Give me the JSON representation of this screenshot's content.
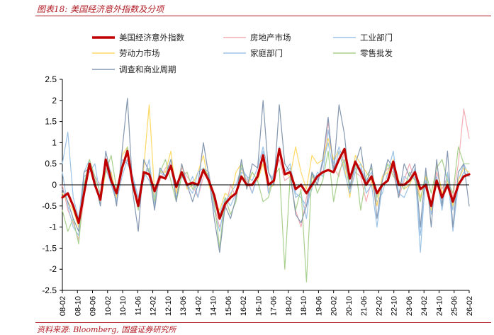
{
  "header": {
    "title": "图表18:  美国经济意外指数及分项"
  },
  "footer": {
    "source": "资料来源:  Bloomberg, 国盛证券研究所"
  },
  "chart_data": {
    "type": "line",
    "title": "美国经济意外指数及分项",
    "xlabel": "",
    "ylabel": "",
    "ylim": [
      -2.5,
      2.5
    ],
    "yticks": [
      "2.5",
      "2",
      "1.5",
      "1",
      "0.5",
      "0",
      "-0.5",
      "-1",
      "-1.5",
      "-2",
      "-2.5"
    ],
    "xticks": [
      "08-02",
      "08-10",
      "09-06",
      "10-02",
      "10-10",
      "11-06",
      "12-02",
      "12-10",
      "13-06",
      "14-02",
      "14-10",
      "15-06",
      "16-02",
      "16-10",
      "17-06",
      "18-02",
      "18-10",
      "19-06",
      "20-02",
      "20-10",
      "21-06",
      "22-02",
      "22-10",
      "23-06",
      "24-02",
      "24-10",
      "25-06",
      "26-02"
    ],
    "legend_position": "top",
    "series": [
      {
        "name": "美国经济意外指数",
        "color": "#c00000",
        "width": 3.2,
        "values": [
          -0.3,
          -0.2,
          -0.5,
          -0.9,
          -0.2,
          0.5,
          0.0,
          -0.35,
          0.6,
          0.1,
          -0.2,
          0.4,
          0.8,
          0.0,
          -0.5,
          0.3,
          0.25,
          -0.15,
          0.2,
          0.15,
          0.45,
          -0.05,
          0.3,
          0.0,
          0.05,
          0.0,
          0.35,
          0.1,
          -0.25,
          -0.8,
          -0.45,
          -0.3,
          -0.2,
          0.2,
          0.0,
          0.0,
          0.2,
          0.7,
          0.0,
          0.1,
          0.85,
          0.25,
          0.3,
          -0.1,
          0.0,
          -0.2,
          0.0,
          0.2,
          0.3,
          0.35,
          0.3,
          0.6,
          0.85,
          0.15,
          0.55,
          0.3,
          0.0,
          0.2,
          -0.2,
          0.0,
          0.1,
          0.55,
          0.0,
          0.0,
          0.1,
          0.3,
          -0.1,
          0.0,
          -0.5,
          0.1,
          -0.3,
          0.0,
          -0.4,
          0.0,
          0.2,
          0.25
        ]
      },
      {
        "name": "房地产市场",
        "color": "#f4aeb5",
        "width": 1.2,
        "values": [
          0.0,
          -0.6,
          -0.9,
          -1.3,
          -0.3,
          0.5,
          0.2,
          0.0,
          0.4,
          0.2,
          -0.3,
          0.5,
          0.6,
          0.1,
          -0.4,
          0.2,
          0.3,
          -0.3,
          0.1,
          0.4,
          0.5,
          -0.2,
          0.4,
          0.2,
          0.0,
          -0.3,
          0.2,
          0.3,
          -0.5,
          -1.0,
          -0.6,
          0.0,
          -0.3,
          0.4,
          0.1,
          -0.2,
          0.3,
          0.6,
          -0.2,
          0.3,
          0.6,
          0.1,
          0.2,
          -0.6,
          -1.0,
          -0.3,
          0.2,
          0.0,
          0.5,
          1.5,
          0.4,
          0.2,
          0.8,
          -0.1,
          0.3,
          0.2,
          -0.4,
          0.1,
          -0.5,
          0.2,
          0.4,
          0.3,
          -0.3,
          0.1,
          0.5,
          0.1,
          -0.3,
          0.1,
          -0.6,
          0.3,
          -0.1,
          0.2,
          -0.3,
          0.5,
          1.8,
          1.1
        ]
      },
      {
        "name": "工业部门",
        "color": "#9cc3e6",
        "width": 1.2,
        "values": [
          0.5,
          1.25,
          -0.3,
          -0.8,
          0.3,
          0.6,
          0.1,
          -0.5,
          0.5,
          0.3,
          -0.4,
          0.2,
          0.6,
          0.1,
          -0.3,
          0.3,
          0.1,
          -0.3,
          0.4,
          0.2,
          0.6,
          0.0,
          0.3,
          -0.1,
          0.2,
          -0.3,
          0.4,
          0.2,
          -0.4,
          -0.7,
          -0.3,
          -0.5,
          -0.2,
          0.3,
          0.2,
          0.1,
          0.4,
          0.9,
          0.3,
          0.1,
          0.9,
          0.3,
          0.5,
          -0.2,
          -0.3,
          -0.5,
          -0.1,
          0.3,
          0.2,
          1.3,
          0.5,
          0.9,
          0.5,
          0.0,
          0.4,
          0.4,
          0.1,
          0.3,
          -0.4,
          -0.2,
          0.3,
          0.8,
          -0.2,
          -0.3,
          0.0,
          0.4,
          -1.6,
          0.3,
          -0.7,
          0.2,
          -0.5,
          0.3,
          -0.6,
          0.1,
          0.5,
          0.2
        ]
      },
      {
        "name": "劳动力市场",
        "color": "#ffd966",
        "width": 1.2,
        "values": [
          -0.2,
          -0.4,
          -0.6,
          -1.0,
          0.0,
          0.4,
          0.1,
          -0.4,
          0.3,
          0.3,
          -0.3,
          0.7,
          0.9,
          -0.1,
          -0.5,
          0.4,
          1.9,
          -0.2,
          0.3,
          0.3,
          0.8,
          -0.2,
          0.5,
          -0.1,
          0.0,
          0.3,
          0.7,
          0.0,
          -0.4,
          -0.6,
          -0.2,
          -0.3,
          0.3,
          0.5,
          -0.1,
          0.3,
          0.1,
          0.5,
          -0.1,
          0.0,
          0.8,
          0.3,
          0.2,
          0.9,
          0.3,
          -0.1,
          0.7,
          0.5,
          0.6,
          1.1,
          0.6,
          0.8,
          0.4,
          -0.3,
          0.7,
          0.5,
          0.3,
          0.1,
          -0.5,
          0.2,
          0.3,
          0.6,
          0.1,
          -0.1,
          0.0,
          0.3,
          -0.3,
          0.2,
          -0.6,
          0.5,
          -0.2,
          0.1,
          -0.5,
          0.1,
          0.4,
          0.3
        ]
      },
      {
        "name": "家庭部门",
        "color": "#9dc3e6",
        "width": 1.2,
        "values": [
          0.3,
          -0.5,
          -1.0,
          -1.2,
          0.2,
          0.3,
          0.5,
          -0.3,
          0.4,
          0.0,
          -0.4,
          0.6,
          0.5,
          0.2,
          -0.3,
          0.1,
          0.6,
          -0.5,
          0.3,
          0.2,
          0.4,
          -0.3,
          0.2,
          0.0,
          -0.2,
          0.3,
          0.4,
          0.3,
          -0.6,
          -1.1,
          -0.4,
          -0.2,
          0.0,
          0.4,
          0.2,
          -0.2,
          0.2,
          0.8,
          -0.2,
          0.3,
          0.9,
          0.3,
          0.4,
          -0.3,
          -0.2,
          -0.8,
          0.3,
          0.1,
          0.5,
          1.0,
          0.3,
          0.8,
          0.3,
          -0.2,
          0.3,
          0.5,
          -0.2,
          0.0,
          -1.0,
          0.0,
          0.1,
          0.5,
          -0.2,
          0.2,
          0.1,
          0.2,
          -1.2,
          0.1,
          -0.5,
          0.2,
          -0.6,
          0.3,
          -1.1,
          0.0,
          0.3,
          0.2
        ]
      },
      {
        "name": "零售批发",
        "color": "#a9d18e",
        "width": 1.2,
        "values": [
          -0.6,
          -1.1,
          -0.8,
          -1.4,
          0.0,
          0.6,
          0.2,
          -0.2,
          0.3,
          0.7,
          -0.1,
          0.4,
          0.9,
          0.0,
          -0.6,
          0.2,
          0.4,
          -0.4,
          0.3,
          0.6,
          0.1,
          -0.4,
          0.2,
          0.3,
          -0.1,
          0.0,
          0.4,
          0.2,
          -0.4,
          -1.5,
          -0.3,
          -0.7,
          -0.4,
          0.5,
          0.0,
          0.3,
          0.1,
          -0.4,
          -0.3,
          0.2,
          0.4,
          -2.0,
          0.2,
          -0.6,
          -0.1,
          -2.3,
          0.3,
          -0.2,
          0.1,
          0.8,
          -0.4,
          0.3,
          0.6,
          -0.1,
          0.5,
          -0.6,
          0.2,
          0.4,
          -0.3,
          0.1,
          0.5,
          0.2,
          0.1,
          -0.1,
          0.3,
          0.1,
          -0.4,
          0.3,
          -0.2,
          0.4,
          0.6,
          0.1,
          -0.2,
          0.9,
          0.5,
          0.5
        ]
      },
      {
        "name": "调查和商业周期",
        "color": "#8497b0",
        "width": 1.2,
        "values": [
          -0.1,
          -0.4,
          -0.8,
          -1.1,
          0.3,
          0.4,
          0.1,
          -0.5,
          0.8,
          0.2,
          -0.5,
          0.8,
          2.05,
          -0.2,
          -1.1,
          0.6,
          0.3,
          -0.6,
          0.4,
          0.2,
          0.6,
          -0.4,
          0.5,
          0.0,
          -0.4,
          0.0,
          1.0,
          0.2,
          -0.8,
          -1.6,
          -0.5,
          -0.8,
          -0.3,
          0.6,
          -0.1,
          0.5,
          0.4,
          2.0,
          0.3,
          0.0,
          1.9,
          0.5,
          0.3,
          -0.7,
          -0.9,
          -0.5,
          0.3,
          0.0,
          0.6,
          1.6,
          0.3,
          1.9,
          1.2,
          -0.1,
          0.5,
          0.9,
          0.0,
          0.5,
          -0.8,
          0.1,
          0.6,
          0.4,
          -0.3,
          0.5,
          0.2,
          0.5,
          -1.0,
          0.4,
          -1.0,
          0.6,
          -0.5,
          0.8,
          -1.0,
          0.3,
          0.5,
          -0.5
        ]
      }
    ]
  }
}
